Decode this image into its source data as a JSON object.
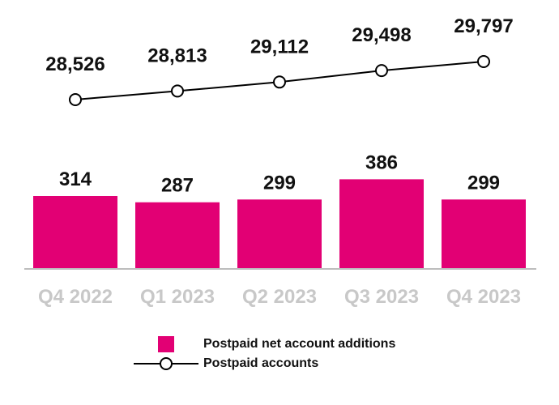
{
  "colors": {
    "bar": "#e20074",
    "line": "#000000",
    "axis": "#bdbdbd",
    "category_text": "#c8c8c8",
    "text": "#111111"
  },
  "chart_data": {
    "type": "bar",
    "categories": [
      "Q4 2022",
      "Q1 2023",
      "Q2 2023",
      "Q3 2023",
      "Q4 2023"
    ],
    "series": [
      {
        "name": "Postpaid net account additions",
        "type": "bar",
        "values": [
          314,
          287,
          299,
          386,
          299
        ],
        "labels": [
          "314",
          "287",
          "299",
          "386",
          "299"
        ]
      },
      {
        "name": "Postpaid accounts",
        "type": "line",
        "values": [
          28526,
          28813,
          29112,
          29498,
          29797
        ],
        "labels": [
          "28,526",
          "28,813",
          "29,112",
          "29,498",
          "29,797"
        ]
      }
    ],
    "title": "",
    "xlabel": "",
    "ylabel": "",
    "grid": false,
    "legend_position": "bottom"
  },
  "legend": {
    "items": [
      {
        "label": "Postpaid net account additions",
        "marker": "square"
      },
      {
        "label": "Postpaid accounts",
        "marker": "line-circle"
      }
    ]
  }
}
